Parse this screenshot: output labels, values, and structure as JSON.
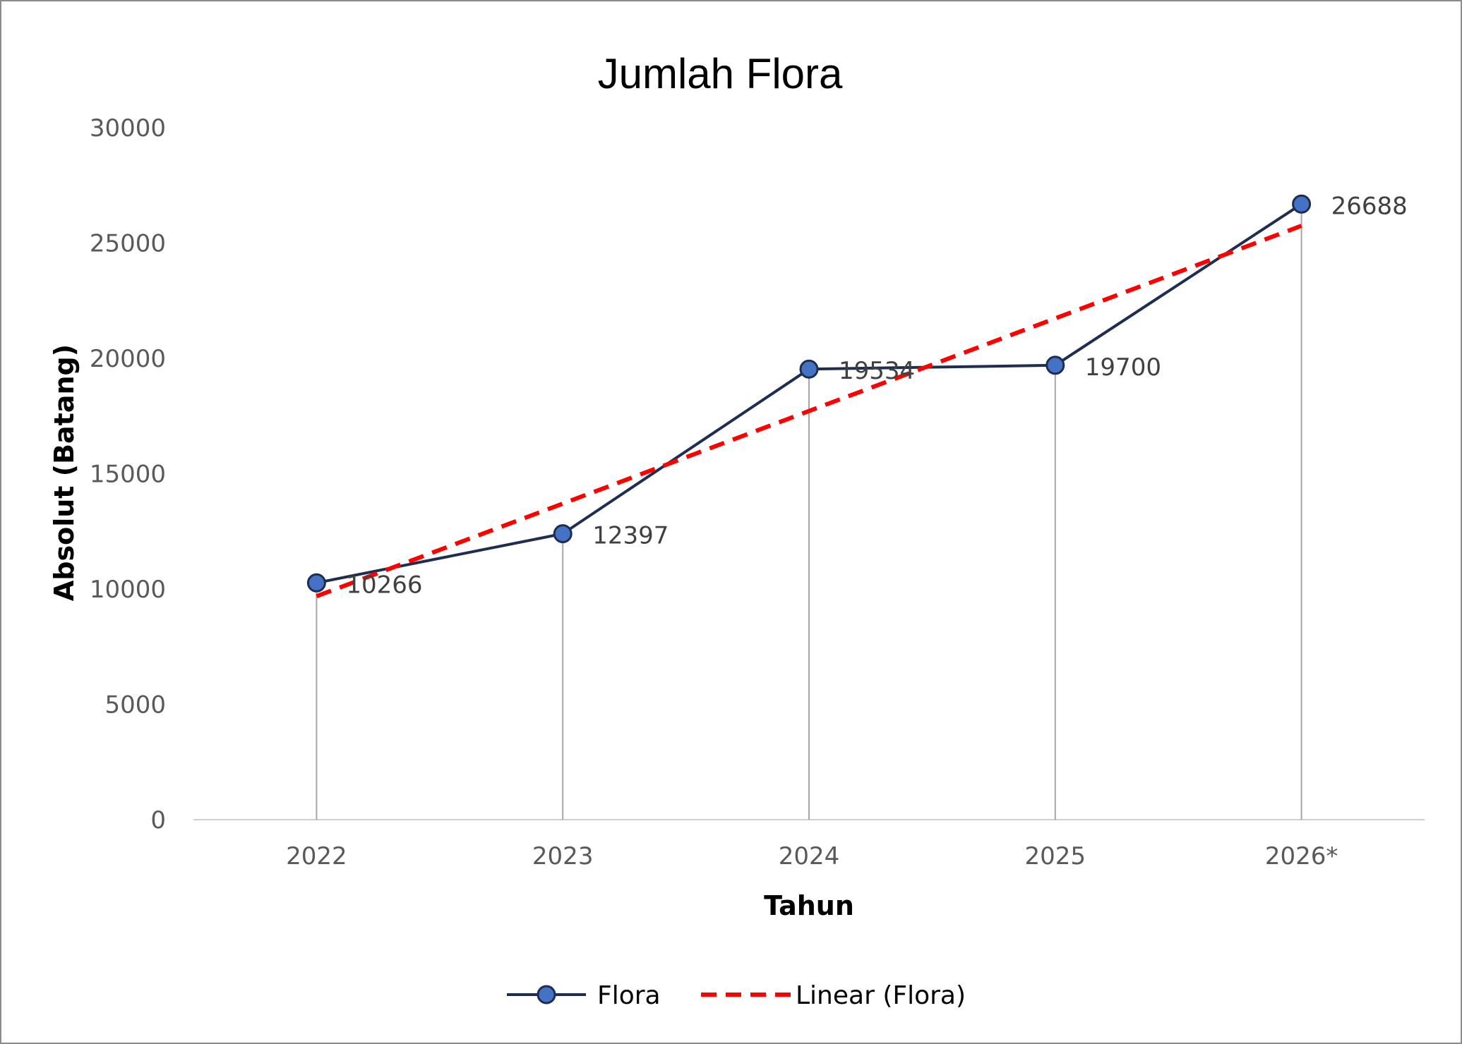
{
  "chart_data": {
    "type": "line",
    "title": "Jumlah Flora",
    "xlabel": "Tahun",
    "ylabel": "Absolut (Batang)",
    "categories": [
      "2022",
      "2023",
      "2024",
      "2025",
      "2026*"
    ],
    "series": [
      {
        "name": "Flora",
        "values": [
          10266,
          12397,
          19534,
          19700,
          26688
        ],
        "color": "#1f2d50",
        "marker_color": "#4472c4"
      }
    ],
    "trendline": {
      "name": "Linear (Flora)",
      "type": "linear",
      "of_series": "Flora",
      "color": "#ff0000",
      "style": "dashed"
    },
    "y_ticks": [
      "0",
      "5000",
      "10000",
      "15000",
      "20000",
      "25000",
      "30000"
    ],
    "ylim": [
      0,
      30000
    ],
    "data_labels": [
      "10266",
      "12397",
      "19534",
      "19700",
      "26688"
    ],
    "drop_lines": true,
    "grid": false,
    "legend": {
      "position": "bottom",
      "entries": [
        "Flora",
        "Linear (Flora)"
      ]
    }
  }
}
